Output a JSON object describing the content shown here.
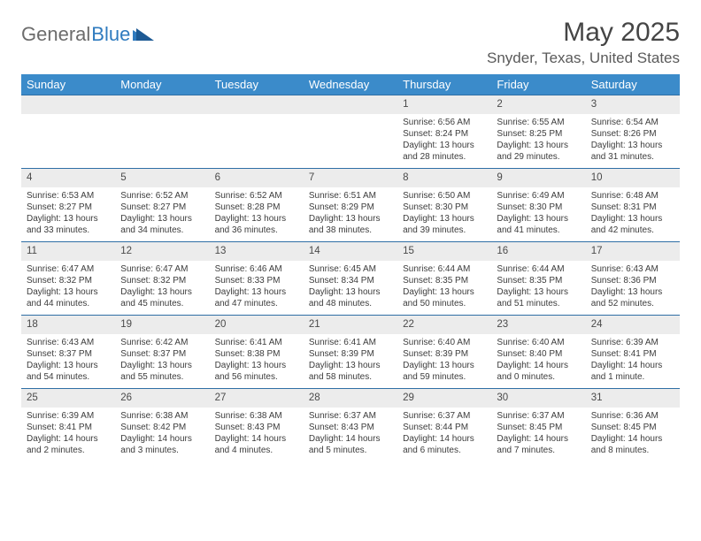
{
  "brand": {
    "part1": "General",
    "part2": "Blue"
  },
  "title": "May 2025",
  "location": "Snyder, Texas, United States",
  "colors": {
    "header_bg": "#3b8bca",
    "header_text": "#ffffff",
    "daynum_bg": "#ececec",
    "border": "#2f6fa5",
    "brand_gray": "#6c6c6c",
    "brand_blue": "#2f7bbf"
  },
  "day_headers": [
    "Sunday",
    "Monday",
    "Tuesday",
    "Wednesday",
    "Thursday",
    "Friday",
    "Saturday"
  ],
  "weeks": [
    [
      null,
      null,
      null,
      null,
      {
        "n": "1",
        "sr": "Sunrise: 6:56 AM",
        "ss": "Sunset: 8:24 PM",
        "d1": "Daylight: 13 hours",
        "d2": "and 28 minutes."
      },
      {
        "n": "2",
        "sr": "Sunrise: 6:55 AM",
        "ss": "Sunset: 8:25 PM",
        "d1": "Daylight: 13 hours",
        "d2": "and 29 minutes."
      },
      {
        "n": "3",
        "sr": "Sunrise: 6:54 AM",
        "ss": "Sunset: 8:26 PM",
        "d1": "Daylight: 13 hours",
        "d2": "and 31 minutes."
      }
    ],
    [
      {
        "n": "4",
        "sr": "Sunrise: 6:53 AM",
        "ss": "Sunset: 8:27 PM",
        "d1": "Daylight: 13 hours",
        "d2": "and 33 minutes."
      },
      {
        "n": "5",
        "sr": "Sunrise: 6:52 AM",
        "ss": "Sunset: 8:27 PM",
        "d1": "Daylight: 13 hours",
        "d2": "and 34 minutes."
      },
      {
        "n": "6",
        "sr": "Sunrise: 6:52 AM",
        "ss": "Sunset: 8:28 PM",
        "d1": "Daylight: 13 hours",
        "d2": "and 36 minutes."
      },
      {
        "n": "7",
        "sr": "Sunrise: 6:51 AM",
        "ss": "Sunset: 8:29 PM",
        "d1": "Daylight: 13 hours",
        "d2": "and 38 minutes."
      },
      {
        "n": "8",
        "sr": "Sunrise: 6:50 AM",
        "ss": "Sunset: 8:30 PM",
        "d1": "Daylight: 13 hours",
        "d2": "and 39 minutes."
      },
      {
        "n": "9",
        "sr": "Sunrise: 6:49 AM",
        "ss": "Sunset: 8:30 PM",
        "d1": "Daylight: 13 hours",
        "d2": "and 41 minutes."
      },
      {
        "n": "10",
        "sr": "Sunrise: 6:48 AM",
        "ss": "Sunset: 8:31 PM",
        "d1": "Daylight: 13 hours",
        "d2": "and 42 minutes."
      }
    ],
    [
      {
        "n": "11",
        "sr": "Sunrise: 6:47 AM",
        "ss": "Sunset: 8:32 PM",
        "d1": "Daylight: 13 hours",
        "d2": "and 44 minutes."
      },
      {
        "n": "12",
        "sr": "Sunrise: 6:47 AM",
        "ss": "Sunset: 8:32 PM",
        "d1": "Daylight: 13 hours",
        "d2": "and 45 minutes."
      },
      {
        "n": "13",
        "sr": "Sunrise: 6:46 AM",
        "ss": "Sunset: 8:33 PM",
        "d1": "Daylight: 13 hours",
        "d2": "and 47 minutes."
      },
      {
        "n": "14",
        "sr": "Sunrise: 6:45 AM",
        "ss": "Sunset: 8:34 PM",
        "d1": "Daylight: 13 hours",
        "d2": "and 48 minutes."
      },
      {
        "n": "15",
        "sr": "Sunrise: 6:44 AM",
        "ss": "Sunset: 8:35 PM",
        "d1": "Daylight: 13 hours",
        "d2": "and 50 minutes."
      },
      {
        "n": "16",
        "sr": "Sunrise: 6:44 AM",
        "ss": "Sunset: 8:35 PM",
        "d1": "Daylight: 13 hours",
        "d2": "and 51 minutes."
      },
      {
        "n": "17",
        "sr": "Sunrise: 6:43 AM",
        "ss": "Sunset: 8:36 PM",
        "d1": "Daylight: 13 hours",
        "d2": "and 52 minutes."
      }
    ],
    [
      {
        "n": "18",
        "sr": "Sunrise: 6:43 AM",
        "ss": "Sunset: 8:37 PM",
        "d1": "Daylight: 13 hours",
        "d2": "and 54 minutes."
      },
      {
        "n": "19",
        "sr": "Sunrise: 6:42 AM",
        "ss": "Sunset: 8:37 PM",
        "d1": "Daylight: 13 hours",
        "d2": "and 55 minutes."
      },
      {
        "n": "20",
        "sr": "Sunrise: 6:41 AM",
        "ss": "Sunset: 8:38 PM",
        "d1": "Daylight: 13 hours",
        "d2": "and 56 minutes."
      },
      {
        "n": "21",
        "sr": "Sunrise: 6:41 AM",
        "ss": "Sunset: 8:39 PM",
        "d1": "Daylight: 13 hours",
        "d2": "and 58 minutes."
      },
      {
        "n": "22",
        "sr": "Sunrise: 6:40 AM",
        "ss": "Sunset: 8:39 PM",
        "d1": "Daylight: 13 hours",
        "d2": "and 59 minutes."
      },
      {
        "n": "23",
        "sr": "Sunrise: 6:40 AM",
        "ss": "Sunset: 8:40 PM",
        "d1": "Daylight: 14 hours",
        "d2": "and 0 minutes."
      },
      {
        "n": "24",
        "sr": "Sunrise: 6:39 AM",
        "ss": "Sunset: 8:41 PM",
        "d1": "Daylight: 14 hours",
        "d2": "and 1 minute."
      }
    ],
    [
      {
        "n": "25",
        "sr": "Sunrise: 6:39 AM",
        "ss": "Sunset: 8:41 PM",
        "d1": "Daylight: 14 hours",
        "d2": "and 2 minutes."
      },
      {
        "n": "26",
        "sr": "Sunrise: 6:38 AM",
        "ss": "Sunset: 8:42 PM",
        "d1": "Daylight: 14 hours",
        "d2": "and 3 minutes."
      },
      {
        "n": "27",
        "sr": "Sunrise: 6:38 AM",
        "ss": "Sunset: 8:43 PM",
        "d1": "Daylight: 14 hours",
        "d2": "and 4 minutes."
      },
      {
        "n": "28",
        "sr": "Sunrise: 6:37 AM",
        "ss": "Sunset: 8:43 PM",
        "d1": "Daylight: 14 hours",
        "d2": "and 5 minutes."
      },
      {
        "n": "29",
        "sr": "Sunrise: 6:37 AM",
        "ss": "Sunset: 8:44 PM",
        "d1": "Daylight: 14 hours",
        "d2": "and 6 minutes."
      },
      {
        "n": "30",
        "sr": "Sunrise: 6:37 AM",
        "ss": "Sunset: 8:45 PM",
        "d1": "Daylight: 14 hours",
        "d2": "and 7 minutes."
      },
      {
        "n": "31",
        "sr": "Sunrise: 6:36 AM",
        "ss": "Sunset: 8:45 PM",
        "d1": "Daylight: 14 hours",
        "d2": "and 8 minutes."
      }
    ]
  ]
}
